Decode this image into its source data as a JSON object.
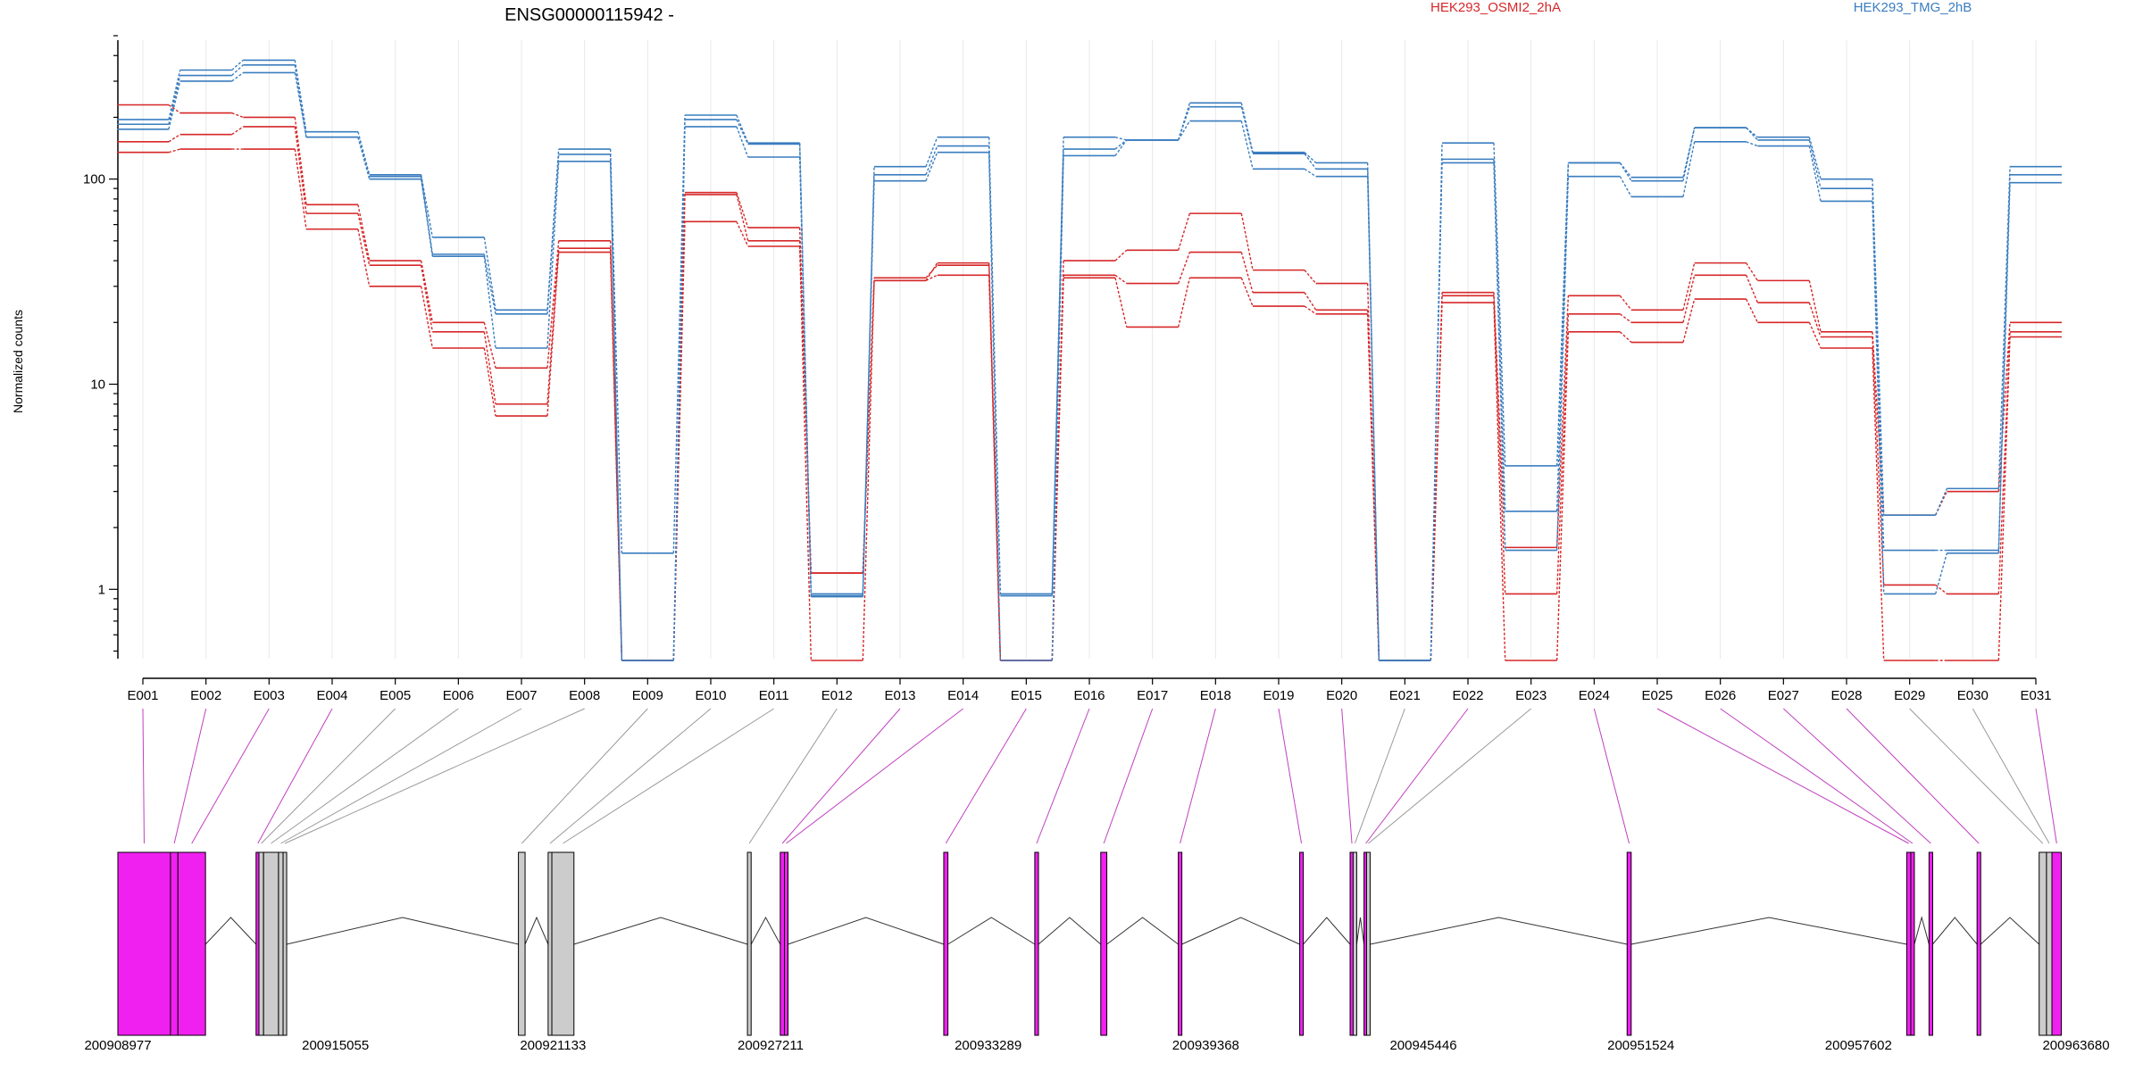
{
  "chart_data": {
    "type": "line",
    "title": "ENSG00000115942 -",
    "ylabel": "Normalized counts",
    "y_scale": "log",
    "ylim": [
      0.45,
      500
    ],
    "y_ticks": [
      {
        "value": 1,
        "label": "1"
      },
      {
        "value": 10,
        "label": "10"
      },
      {
        "value": 100,
        "label": "100"
      }
    ],
    "grid": "vertical-per-exon",
    "legend": [
      {
        "name": "HEK293_OSMI2_2hA",
        "color": "#d62728",
        "placement": "top-center-right"
      },
      {
        "name": "HEK293_TMG_2hB",
        "color": "#3a7dbf",
        "placement": "top-right"
      }
    ],
    "categories": [
      "E001",
      "E002",
      "E003",
      "E004",
      "E005",
      "E006",
      "E007",
      "E008",
      "E009",
      "E010",
      "E011",
      "E012",
      "E013",
      "E014",
      "E015",
      "E016",
      "E017",
      "E018",
      "E019",
      "E020",
      "E021",
      "E022",
      "E023",
      "E024",
      "E025",
      "E026",
      "E027",
      "E028",
      "E029",
      "E030",
      "E031"
    ],
    "series": [
      {
        "group": "HEK293_OSMI2_2hA",
        "color": "#d62728",
        "values": [
          230,
          210,
          200,
          75,
          40,
          20,
          12,
          50,
          0.45,
          86,
          58,
          1.2,
          32,
          39,
          0.45,
          40,
          45,
          68,
          36,
          31,
          0.45,
          28,
          1.6,
          27,
          23,
          39,
          32,
          18,
          2.3,
          3.0,
          20
        ]
      },
      {
        "group": "HEK293_OSMI2_2hA",
        "color": "#d62728",
        "values": [
          152,
          165,
          180,
          68,
          38,
          18,
          8,
          46,
          0.45,
          84,
          50,
          1.2,
          33,
          38,
          0.45,
          34,
          31,
          44,
          28,
          23,
          0.45,
          27,
          0.95,
          22,
          20,
          34,
          25,
          17,
          1.05,
          0.95,
          18
        ]
      },
      {
        "group": "HEK293_OSMI2_2hA",
        "color": "#d62728",
        "values": [
          135,
          140,
          140,
          57,
          30,
          15,
          7,
          44,
          0.45,
          62,
          47,
          0.45,
          32,
          34,
          0.45,
          33,
          19,
          33,
          24,
          22,
          0.45,
          25,
          0.45,
          18,
          16,
          26,
          20,
          15,
          0.45,
          0.45,
          17
        ]
      },
      {
        "group": "HEK293_TMG_2hB",
        "color": "#3a7dbf",
        "values": [
          195,
          340,
          380,
          170,
          105,
          52,
          23,
          140,
          1.5,
          205,
          150,
          0.95,
          115,
          160,
          0.95,
          160,
          155,
          235,
          135,
          120,
          0.45,
          150,
          4.0,
          120,
          102,
          178,
          160,
          100,
          2.3,
          3.1,
          115
        ]
      },
      {
        "group": "HEK293_TMG_2hB",
        "color": "#3a7dbf",
        "values": [
          185,
          320,
          360,
          160,
          103,
          43,
          22,
          132,
          0.45,
          195,
          148,
          0.93,
          105,
          145,
          0.93,
          140,
          155,
          225,
          133,
          112,
          0.45,
          125,
          2.4,
          120,
          98,
          178,
          155,
          90,
          1.55,
          1.55,
          105
        ]
      },
      {
        "group": "HEK293_TMG_2hB",
        "color": "#3a7dbf",
        "values": [
          175,
          300,
          330,
          160,
          100,
          42,
          15,
          122,
          0.45,
          180,
          128,
          0.92,
          98,
          135,
          0.45,
          130,
          155,
          192,
          112,
          103,
          0.45,
          120,
          1.55,
          103,
          82,
          152,
          145,
          78,
          0.95,
          1.5,
          96
        ]
      }
    ],
    "genome_track": {
      "x_axis": [
        {
          "coord": 200908977,
          "label": "200908977"
        },
        {
          "coord": 200915055,
          "label": "200915055"
        },
        {
          "coord": 200921133,
          "label": "200921133"
        },
        {
          "coord": 200927211,
          "label": "200927211"
        },
        {
          "coord": 200933289,
          "label": "200933289"
        },
        {
          "coord": 200939368,
          "label": "200939368"
        },
        {
          "coord": 200945446,
          "label": "200945446"
        },
        {
          "coord": 200951524,
          "label": "200951524"
        },
        {
          "coord": 200957602,
          "label": "200957602"
        },
        {
          "coord": 200963680,
          "label": "200963680"
        }
      ],
      "exons": [
        {
          "id": "E001",
          "start": 200908977,
          "end": 200910447,
          "significant": true
        },
        {
          "id": "E002",
          "start": 200910447,
          "end": 200910656,
          "significant": true
        },
        {
          "id": "E003",
          "start": 200910656,
          "end": 200911425,
          "significant": true
        },
        {
          "id": "E004",
          "start": 200912838,
          "end": 200912918,
          "significant": true
        },
        {
          "id": "E005",
          "start": 200912918,
          "end": 200913047,
          "significant": false
        },
        {
          "id": "E006",
          "start": 200913047,
          "end": 200913465,
          "significant": false
        },
        {
          "id": "E007",
          "start": 200913465,
          "end": 200913593,
          "significant": false
        },
        {
          "id": "E008",
          "start": 200913593,
          "end": 200913685,
          "significant": false
        },
        {
          "id": "E009",
          "start": 200920167,
          "end": 200920353,
          "significant": false
        },
        {
          "id": "E010",
          "start": 200920997,
          "end": 200921101,
          "significant": false
        },
        {
          "id": "E011",
          "start": 200921101,
          "end": 200921718,
          "significant": false
        },
        {
          "id": "E012",
          "start": 200926565,
          "end": 200926668,
          "significant": false
        },
        {
          "id": "E013",
          "start": 200927481,
          "end": 200927598,
          "significant": true
        },
        {
          "id": "E014",
          "start": 200927598,
          "end": 200927649,
          "significant": true
        },
        {
          "id": "E015",
          "start": 200932049,
          "end": 200932165,
          "significant": true
        },
        {
          "id": "E016",
          "start": 200934592,
          "end": 200934695,
          "significant": true
        },
        {
          "id": "E017",
          "start": 200936435,
          "end": 200936604,
          "significant": true
        },
        {
          "id": "E018",
          "start": 200938601,
          "end": 200938677,
          "significant": true
        },
        {
          "id": "E019",
          "start": 200941992,
          "end": 200942063,
          "significant": true
        },
        {
          "id": "E020",
          "start": 200943401,
          "end": 200943485,
          "significant": true
        },
        {
          "id": "E021",
          "start": 200943485,
          "end": 200943523,
          "significant": false
        },
        {
          "id": "E022",
          "start": 200943789,
          "end": 200943860,
          "significant": true
        },
        {
          "id": "E023",
          "start": 200943860,
          "end": 200943957,
          "significant": false
        },
        {
          "id": "E024",
          "start": 200951139,
          "end": 200951253,
          "significant": true
        },
        {
          "id": "E025",
          "start": 200958950,
          "end": 200959064,
          "significant": true
        },
        {
          "id": "E026",
          "start": 200959064,
          "end": 200959116,
          "significant": true
        },
        {
          "id": "E027",
          "start": 200959573,
          "end": 200959675,
          "significant": true
        },
        {
          "id": "E028",
          "start": 200960915,
          "end": 200961017,
          "significant": true
        },
        {
          "id": "E029",
          "start": 200962650,
          "end": 200962855,
          "significant": false
        },
        {
          "id": "E030",
          "start": 200962855,
          "end": 200963007,
          "significant": false
        },
        {
          "id": "E031",
          "start": 200963007,
          "end": 200963270,
          "significant": true
        }
      ],
      "colors": {
        "significant": "#f020f0",
        "other": "#cccccc"
      }
    }
  }
}
